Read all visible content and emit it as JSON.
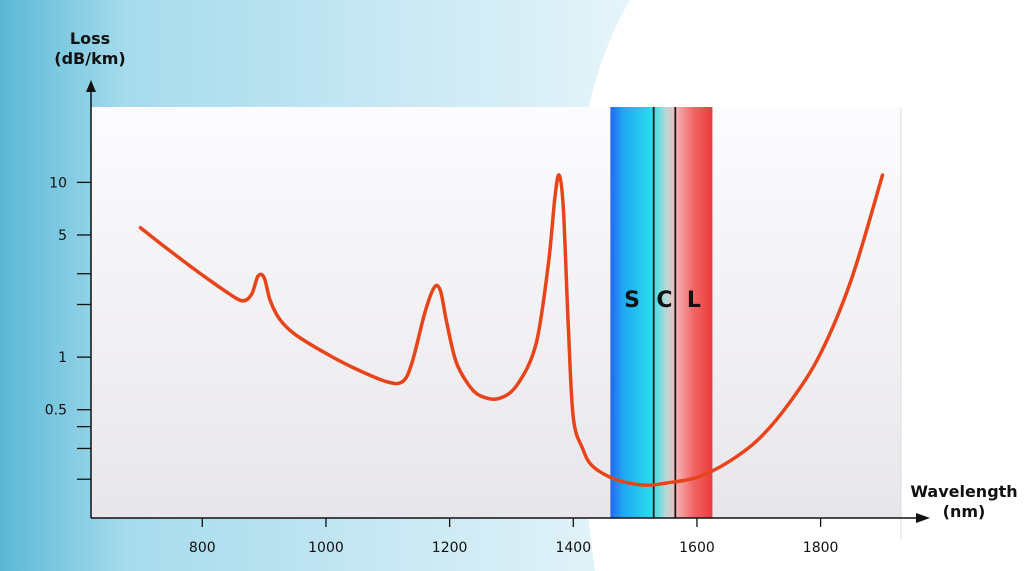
{
  "chart_data": {
    "type": "line",
    "title": "",
    "xlabel": "Wavelength (nm)",
    "ylabel": "Loss (dB/km)",
    "x_axis_title": {
      "line1": "Wavelength",
      "line2": "(nm)"
    },
    "y_axis_title": {
      "line1": "Loss",
      "line2": "(dB/km)"
    },
    "xlim": [
      620,
      1930
    ],
    "ylim": [
      0.12,
      27
    ],
    "y_scale": "log",
    "grid": false,
    "x_ticks": [
      {
        "value": 800,
        "label": "800"
      },
      {
        "value": 1000,
        "label": "1000"
      },
      {
        "value": 1200,
        "label": "1200"
      },
      {
        "value": 1400,
        "label": "1400"
      },
      {
        "value": 1600,
        "label": "1600"
      },
      {
        "value": 1800,
        "label": "1800"
      }
    ],
    "y_ticks": [
      {
        "value": 10,
        "label": "10"
      },
      {
        "value": 5,
        "label": "5"
      },
      {
        "value": 3,
        "label": ""
      },
      {
        "value": 2,
        "label": ""
      },
      {
        "value": 1,
        "label": "1"
      },
      {
        "value": 0.5,
        "label": "0.5"
      },
      {
        "value": 0.4,
        "label": ""
      },
      {
        "value": 0.3,
        "label": ""
      },
      {
        "value": 0.2,
        "label": ""
      }
    ],
    "bands": [
      {
        "label": "S",
        "start": 1460,
        "end": 1530
      },
      {
        "label": "C",
        "start": 1530,
        "end": 1565
      },
      {
        "label": "L",
        "start": 1565,
        "end": 1625
      }
    ],
    "series": [
      {
        "color": "#e8441a",
        "x": [
          700,
          750,
          800,
          840,
          865,
          880,
          890,
          900,
          910,
          925,
          950,
          1000,
          1050,
          1100,
          1125,
          1140,
          1160,
          1175,
          1185,
          1195,
          1210,
          1230,
          1250,
          1280,
          1310,
          1340,
          1360,
          1370,
          1377,
          1384,
          1392,
          1400,
          1415,
          1430,
          1460,
          1490,
          1520,
          1550,
          1600,
          1650,
          1700,
          1750,
          1800,
          1850,
          1900
        ],
        "y": [
          5.5,
          4.0,
          2.95,
          2.35,
          2.1,
          2.3,
          2.9,
          2.85,
          2.1,
          1.65,
          1.35,
          1.05,
          0.85,
          0.72,
          0.73,
          0.95,
          1.8,
          2.5,
          2.4,
          1.6,
          0.95,
          0.7,
          0.6,
          0.58,
          0.7,
          1.2,
          3.5,
          8.0,
          11.0,
          7.0,
          1.5,
          0.45,
          0.3,
          0.24,
          0.205,
          0.19,
          0.185,
          0.19,
          0.205,
          0.25,
          0.34,
          0.55,
          1.05,
          2.8,
          11.0
        ]
      }
    ]
  }
}
